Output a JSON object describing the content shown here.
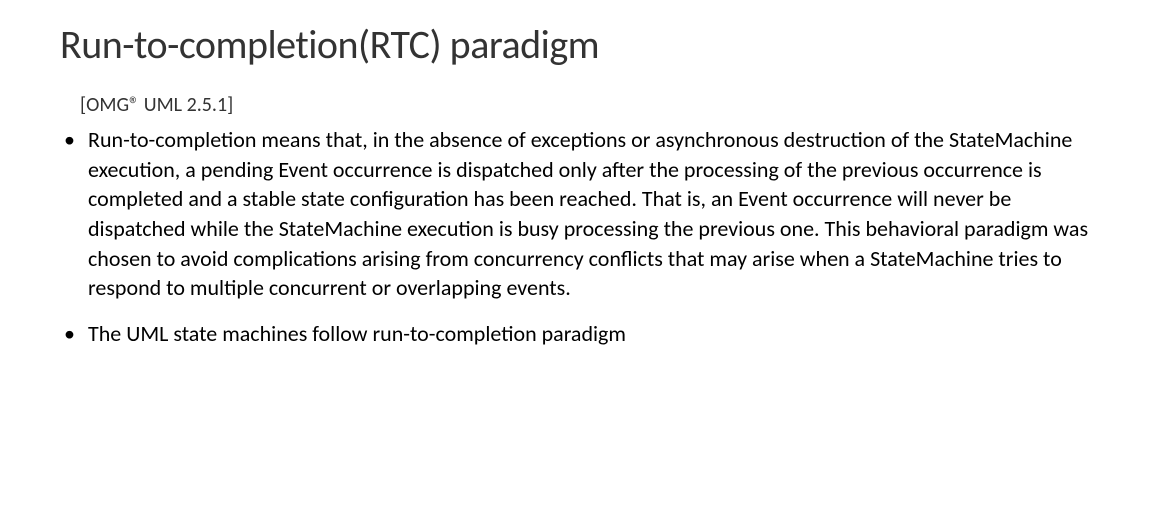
{
  "slide": {
    "title": "Run-to-completion(RTC) paradigm",
    "reference": "[OMG® UML 2.5.1]",
    "bullets": [
      "Run-to-completion means that, in the absence of exceptions or asynchronous destruction of the StateMachine execution, a pending Event occurrence is dispatched only after the processing of the previous occurrence is completed and a stable state configuration has been reached. That is, an Event occurrence will never be dispatched while the StateMachine execution is busy processing the previous one. This behavioral paradigm was chosen to avoid complications arising from concurrency conflicts that may arise when a StateMachine tries to respond to multiple concurrent or overlapping events.",
      "The UML state machines follow run-to-completion paradigm"
    ]
  },
  "styling": {
    "background_color": "#ffffff",
    "title_color": "#333333",
    "title_fontsize": 40,
    "body_color": "#000000",
    "body_fontsize": 22,
    "reference_fontsize": 20,
    "font_family": "Calibri"
  }
}
